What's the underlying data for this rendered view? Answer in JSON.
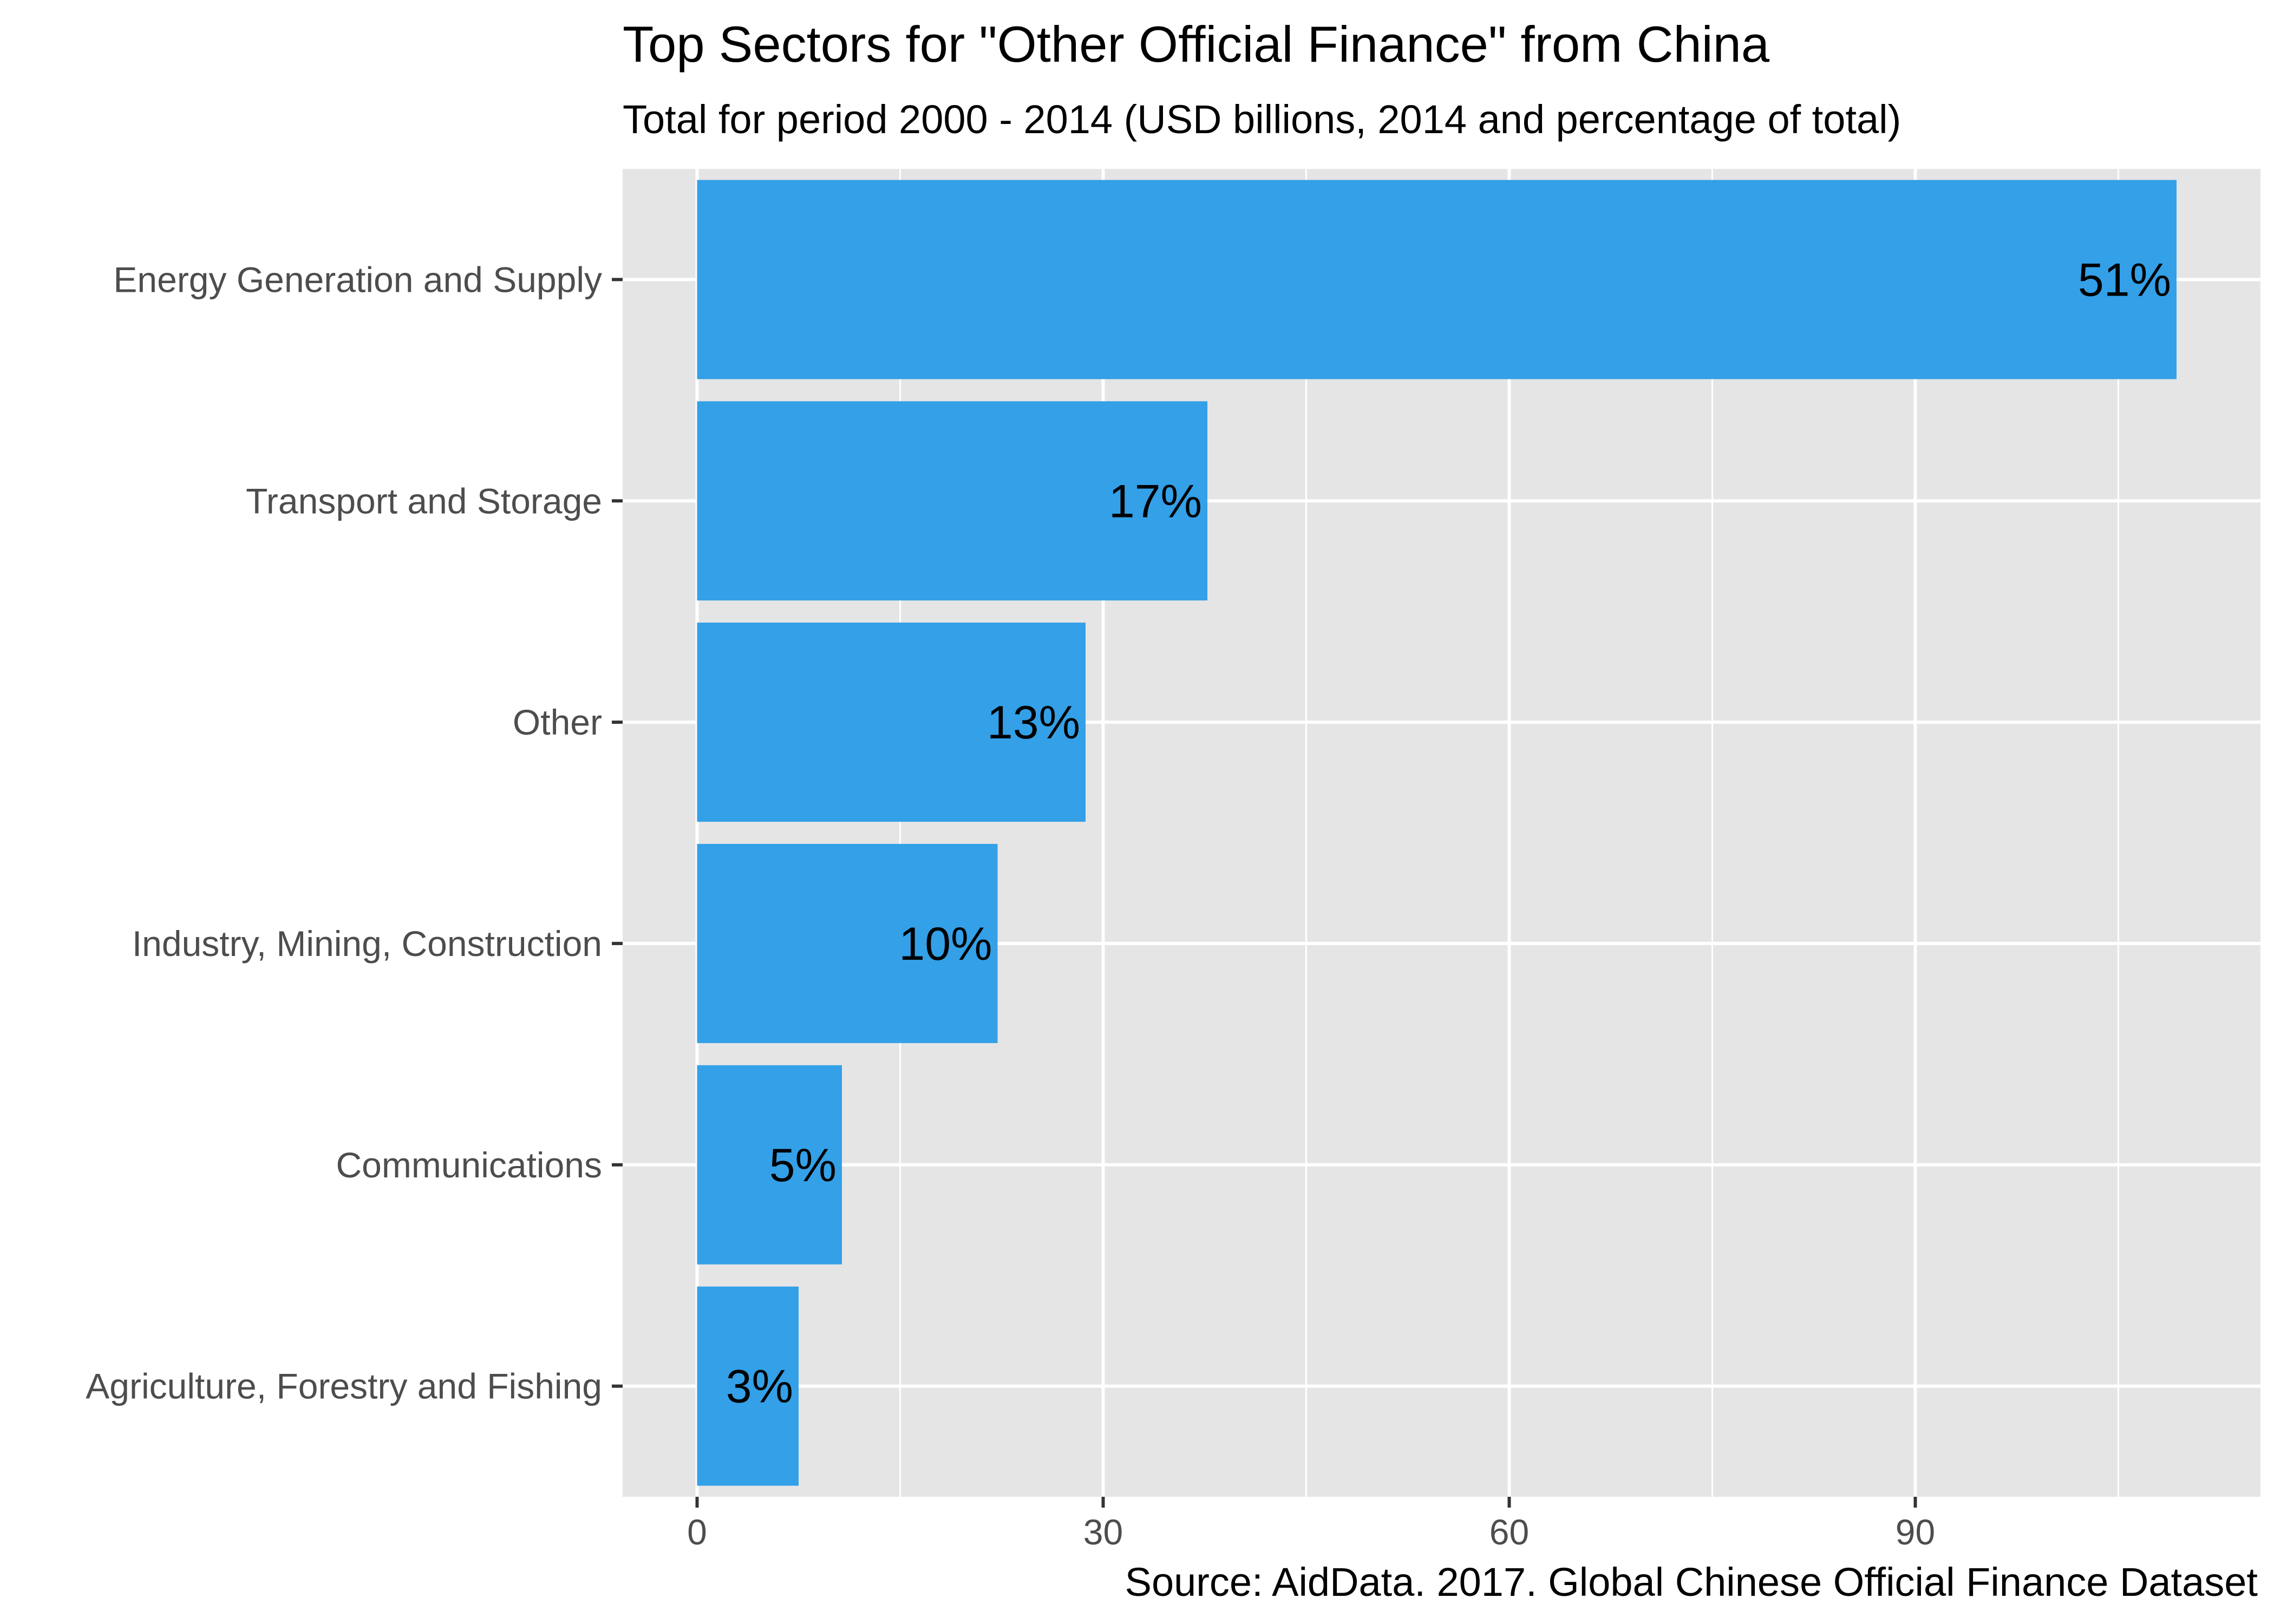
{
  "chart_data": {
    "type": "bar",
    "orientation": "horizontal",
    "title": "Top Sectors for \"Other Official Finance\" from China",
    "subtitle": "Total for period 2000 - 2014 (USD billions, 2014 and percentage of total)",
    "caption": "Source: AidData. 2017. Global Chinese Official Finance Dataset",
    "xlabel": "",
    "ylabel": "",
    "categories": [
      "Energy Generation and Supply",
      "Transport and Storage",
      "Other",
      "Industry, Mining, Construction",
      "Communications",
      "Agriculture, Forestry and Fishing"
    ],
    "values": [
      109.3,
      37.7,
      28.7,
      22.2,
      10.7,
      7.5
    ],
    "labels": [
      "51%",
      "17%",
      "13%",
      "10%",
      "5%",
      "3%"
    ],
    "xlim": [
      -5.5,
      115.5
    ],
    "xticks": [
      0,
      30,
      60,
      90
    ],
    "xtick_labels": [
      "0",
      "30",
      "60",
      "90"
    ],
    "grid": true,
    "colors": {
      "bar": "#33a0e8",
      "panel": "#e5e5e5",
      "grid": "#ffffff"
    }
  }
}
